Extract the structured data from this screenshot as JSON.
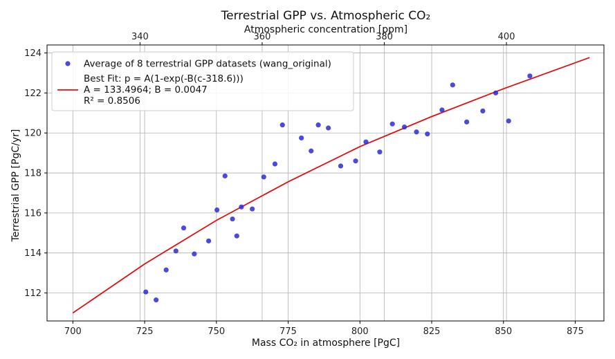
{
  "chart_data": {
    "type": "scatter",
    "title": "Terrestrial GPP vs. Atmospheric CO₂",
    "xlabel": "Mass CO₂ in atmosphere [PgC]",
    "x2label": "Atmospheric concentration [ppm]",
    "ylabel": "Terrestrial GPP [PgC/yr]",
    "xlim": [
      691,
      885
    ],
    "ylim": [
      110.6,
      124.4
    ],
    "xticks": [
      700,
      725,
      750,
      775,
      800,
      825,
      850,
      875
    ],
    "yticks": [
      112,
      114,
      116,
      118,
      120,
      122,
      124
    ],
    "x2ticks": [
      340,
      360,
      380,
      400
    ],
    "x2_conversion_pgc_per_ppm": 2.1276,
    "grid": true,
    "legend_position": "top-left",
    "series": [
      {
        "name": "Average of 8 terrestrial GPP datasets (wang_original)",
        "kind": "scatter",
        "color": "#2a2ad6",
        "x": [
          725.4,
          729.0,
          732.5,
          735.9,
          738.6,
          742.3,
          747.3,
          750.2,
          753.0,
          755.6,
          757.1,
          758.7,
          762.5,
          766.5,
          770.4,
          773.0,
          779.6,
          783.0,
          785.5,
          789.0,
          793.3,
          798.5,
          802.1,
          806.9,
          811.3,
          815.5,
          819.7,
          823.5,
          828.6,
          832.3,
          837.2,
          842.8,
          847.3,
          851.8,
          859.2
        ],
        "y": [
          112.05,
          111.65,
          113.15,
          114.1,
          115.25,
          113.95,
          114.6,
          116.15,
          117.85,
          115.7,
          114.85,
          116.3,
          116.2,
          117.8,
          118.45,
          120.4,
          119.75,
          119.1,
          120.4,
          120.25,
          118.35,
          118.6,
          119.55,
          119.05,
          120.45,
          120.3,
          120.05,
          119.95,
          121.15,
          122.4,
          120.55,
          121.1,
          122.0,
          120.6,
          122.85
        ]
      },
      {
        "name": "Best Fit: p = A(1-exp(-B(c-318.6)))\nA = 133.4964; B = 0.0047\nR² = 0.8506",
        "kind": "line",
        "color": "#e01010",
        "x": [
          700,
          725,
          750,
          775,
          800,
          825,
          850,
          880
        ],
        "y": [
          111.0,
          113.45,
          115.63,
          117.56,
          119.32,
          120.82,
          122.21,
          123.77
        ]
      }
    ]
  },
  "legend": {
    "scatter_label": "Average of 8 terrestrial GPP datasets (wang_original)",
    "fit_line1": "Best Fit: p = A(1-exp(-B(c-318.6)))",
    "fit_line2": "A = 133.4964; B = 0.0047",
    "fit_line3": "R² = 0.8506"
  }
}
